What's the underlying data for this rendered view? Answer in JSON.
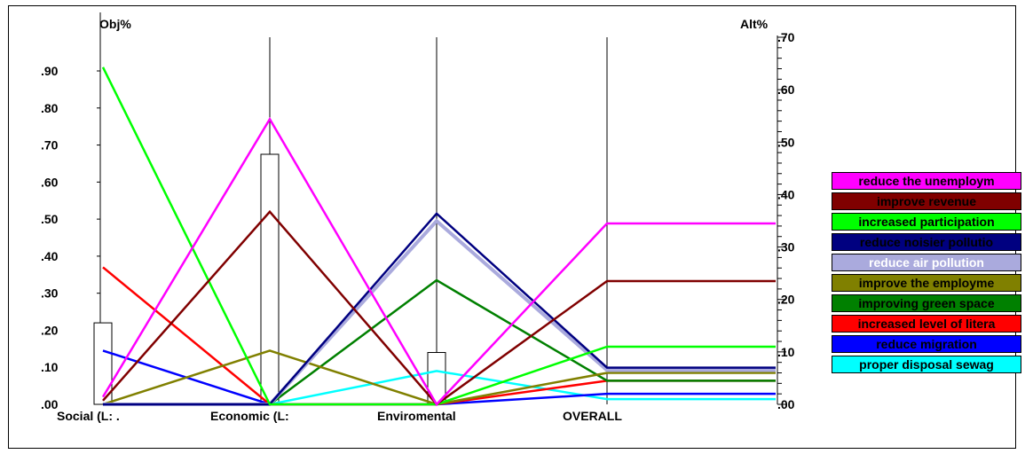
{
  "chart_data": {
    "type": "line",
    "title": "",
    "left_axis_label": "Obj%",
    "right_axis_label": "Alt%",
    "left_axis_ticks": [
      ".00",
      ".10",
      ".20",
      ".30",
      ".40",
      ".50",
      ".60",
      ".70",
      ".80",
      ".90"
    ],
    "right_axis_ticks": [
      ".00",
      ".10",
      ".20",
      ".30",
      ".40",
      ".50",
      ".60",
      ".70"
    ],
    "left_ylim": [
      0,
      1.0
    ],
    "right_ylim": [
      0,
      0.7
    ],
    "categories": [
      "Social (L: .",
      "Economic (L:",
      "Enviromental",
      "OVERALL"
    ],
    "objective_weights": [
      0.22,
      0.675,
      0.14
    ],
    "legend_position": "right",
    "grid": false,
    "series": [
      {
        "name": "reduce the unemploym",
        "color": "#ff00ff",
        "text_color": "#000000",
        "values": [
          0.02,
          0.77,
          0.0,
          0.345
        ]
      },
      {
        "name": "improve revenue",
        "color": "#800000",
        "text_color": "#000000",
        "values": [
          0.01,
          0.52,
          0.0,
          0.235
        ]
      },
      {
        "name": "increased participation",
        "color": "#00ff00",
        "text_color": "#000000",
        "values": [
          0.91,
          0.0,
          0.0,
          0.11
        ]
      },
      {
        "name": "reduce noisier pollutio",
        "color": "#000080",
        "text_color": "#000000",
        "values": [
          0.0,
          0.0,
          0.515,
          0.07
        ]
      },
      {
        "name": "reduce air pollution",
        "color": "#aaaadd",
        "text_color": "#ffffff",
        "values": [
          0.0,
          0.0,
          0.495,
          0.065
        ]
      },
      {
        "name": "improve the employme",
        "color": "#808000",
        "text_color": "#000000",
        "values": [
          0.0,
          0.145,
          0.0,
          0.06
        ]
      },
      {
        "name": "improving green space",
        "color": "#008000",
        "text_color": "#000000",
        "values": [
          0.0,
          0.0,
          0.335,
          0.045
        ]
      },
      {
        "name": "increased level of litera",
        "color": "#ff0000",
        "text_color": "#000000",
        "values": [
          0.37,
          0.0,
          0.0,
          0.045
        ]
      },
      {
        "name": "reduce migration",
        "color": "#0000ff",
        "text_color": "#000000",
        "values": [
          0.145,
          0.0,
          0.0,
          0.02
        ]
      },
      {
        "name": "proper disposal sewag",
        "color": "#00ffff",
        "text_color": "#000000",
        "values": [
          0.0,
          0.0,
          0.09,
          0.01
        ]
      }
    ]
  }
}
